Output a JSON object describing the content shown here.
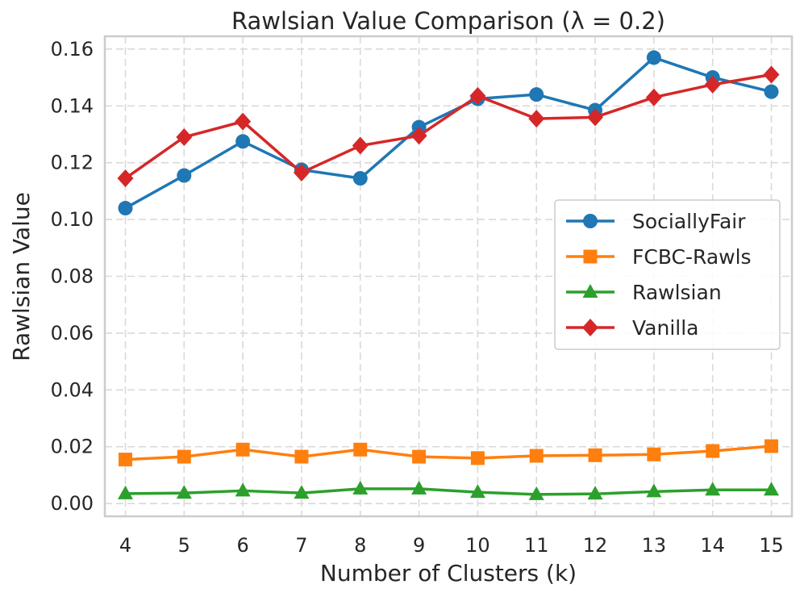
{
  "chart_data": {
    "type": "line",
    "title": "Rawlsian Value Comparison (λ = 0.2)",
    "xlabel": "Number of Clusters (k)",
    "ylabel": "Rawlsian Value",
    "x": [
      4,
      5,
      6,
      7,
      8,
      9,
      10,
      11,
      12,
      13,
      14,
      15
    ],
    "xlim": [
      3.65,
      15.35
    ],
    "ylim": [
      -0.0045,
      0.1645
    ],
    "yticks": [
      0.0,
      0.02,
      0.04,
      0.06,
      0.08,
      0.1,
      0.12,
      0.14,
      0.16
    ],
    "ytick_labels": [
      "0.00",
      "0.02",
      "0.04",
      "0.06",
      "0.08",
      "0.10",
      "0.12",
      "0.14",
      "0.16"
    ],
    "grid": true,
    "legend_position": "center-right",
    "series": [
      {
        "name": "SociallyFair",
        "color": "#1f77b4",
        "marker": "circle",
        "values": [
          0.104,
          0.1155,
          0.1275,
          0.1175,
          0.1145,
          0.1325,
          0.1425,
          0.144,
          0.1385,
          0.157,
          0.15,
          0.145
        ]
      },
      {
        "name": "FCBC-Rawls",
        "color": "#ff7f0e",
        "marker": "square",
        "values": [
          0.0155,
          0.0165,
          0.019,
          0.0165,
          0.019,
          0.0165,
          0.016,
          0.0168,
          0.017,
          0.0173,
          0.0185,
          0.0202
        ]
      },
      {
        "name": "Rawlsian",
        "color": "#2ca02c",
        "marker": "triangle",
        "values": [
          0.0035,
          0.0037,
          0.0045,
          0.0037,
          0.0052,
          0.0052,
          0.004,
          0.0032,
          0.0034,
          0.0042,
          0.0048,
          0.0048
        ]
      },
      {
        "name": "Vanilla",
        "color": "#d62728",
        "marker": "diamond",
        "values": [
          0.1145,
          0.129,
          0.1345,
          0.1165,
          0.126,
          0.1295,
          0.1435,
          0.1355,
          0.136,
          0.143,
          0.1475,
          0.151
        ]
      }
    ]
  }
}
